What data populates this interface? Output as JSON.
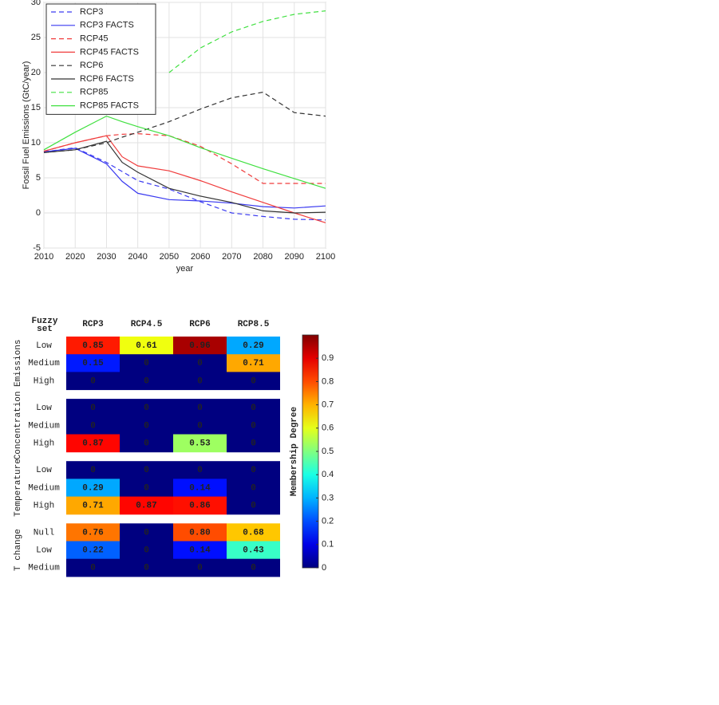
{
  "chart_data": [
    {
      "type": "line",
      "xlabel": "year",
      "ylabel": "Fossil Fuel Emissions (GtC/year)",
      "x": [
        2010,
        2020,
        2030,
        2035,
        2040,
        2050,
        2060,
        2070,
        2080,
        2090,
        2100
      ],
      "xlim": [
        2010,
        2100
      ],
      "xticks": [
        2010,
        2020,
        2030,
        2040,
        2050,
        2060,
        2070,
        2080,
        2090,
        2100
      ],
      "ylim": [
        -5,
        30
      ],
      "yticks": [
        -5,
        0,
        5,
        10,
        15,
        20,
        25,
        30
      ],
      "grid": true,
      "legend": "upper left",
      "series": [
        {
          "name": "RCP3",
          "color": "#3a3af0",
          "dashed": true,
          "values": [
            8.7,
            9.3,
            7.2,
            5.9,
            4.6,
            3.4,
            1.6,
            0,
            -0.5,
            -0.9,
            -1
          ]
        },
        {
          "name": "RCP3 FACTS",
          "color": "#3a3af0",
          "dashed": false,
          "values": [
            8.7,
            9.2,
            7,
            4.5,
            2.8,
            1.9,
            1.7,
            1.4,
            0.9,
            0.7,
            1
          ]
        },
        {
          "name": "RCP45",
          "color": "#f03c3c",
          "dashed": true,
          "values": [
            8.8,
            10,
            11,
            11.2,
            11.3,
            11,
            9.5,
            7,
            4.2,
            4.2,
            4.2
          ]
        },
        {
          "name": "RCP45 FACTS",
          "color": "#f03c3c",
          "dashed": false,
          "values": [
            8.8,
            10,
            11,
            8,
            6.7,
            6,
            4.6,
            3,
            1.5,
            0,
            -1.4
          ]
        },
        {
          "name": "RCP6",
          "color": "#333333",
          "dashed": true,
          "values": [
            8.6,
            9,
            10,
            10.8,
            11.5,
            13,
            14.8,
            16.4,
            17.2,
            14.3,
            13.8
          ]
        },
        {
          "name": "RCP6 FACTS",
          "color": "#333333",
          "dashed": false,
          "values": [
            8.6,
            9,
            10.2,
            7.2,
            5.8,
            3.5,
            2.4,
            1.5,
            0.3,
            0,
            0.1
          ]
        },
        {
          "name": "RCP85",
          "color": "#40e040",
          "dashed": true,
          "values": [
            null,
            null,
            null,
            null,
            null,
            20,
            23.5,
            25.8,
            27.3,
            28.3,
            28.8
          ]
        },
        {
          "name": "RCP85 FACTS",
          "color": "#40e040",
          "dashed": false,
          "values": [
            9,
            11.5,
            13.8,
            13,
            12.3,
            11,
            9.3,
            7.8,
            6.3,
            4.9,
            3.5
          ]
        }
      ]
    },
    {
      "type": "heatmap",
      "corner": "Fuzzy set",
      "columns": [
        "RCP3",
        "RCP4.5",
        "RCP6",
        "RCP8.5"
      ],
      "groups": [
        {
          "name": "Emissions",
          "rows": [
            {
              "label": "Low",
              "values": [
                0.85,
                0.61,
                0.96,
                0.29
              ],
              "value_labels": [
                "0.85",
                "0.61",
                "0.96",
                "0.29"
              ]
            },
            {
              "label": "Medium",
              "values": [
                0.15,
                0,
                0,
                0.71
              ],
              "value_labels": [
                "0.15",
                "0",
                "0",
                "0.71"
              ]
            },
            {
              "label": "High",
              "values": [
                0,
                0,
                0,
                0
              ],
              "value_labels": [
                "0",
                "0",
                "0",
                "0"
              ]
            }
          ]
        },
        {
          "name": "Concentration",
          "rows": [
            {
              "label": "Low",
              "values": [
                0,
                0,
                0,
                0
              ],
              "value_labels": [
                "0",
                "0",
                "0",
                "0"
              ]
            },
            {
              "label": "Medium",
              "values": [
                0,
                0,
                0,
                0
              ],
              "value_labels": [
                "0",
                "0",
                "0",
                "0"
              ]
            },
            {
              "label": "High",
              "values": [
                0.87,
                0,
                0.53,
                0
              ],
              "value_labels": [
                "0.87",
                "0",
                "0.53",
                "0"
              ]
            }
          ]
        },
        {
          "name": "Temperature",
          "rows": [
            {
              "label": "Low",
              "values": [
                0,
                0,
                0,
                0
              ],
              "value_labels": [
                "0",
                "0",
                "0",
                "0"
              ]
            },
            {
              "label": "Medium",
              "values": [
                0.29,
                0,
                0.14,
                0
              ],
              "value_labels": [
                "0.29",
                "0",
                "0.14",
                "0"
              ]
            },
            {
              "label": "High",
              "values": [
                0.71,
                0.87,
                0.86,
                0
              ],
              "value_labels": [
                "0.71",
                "0.87",
                "0.86",
                "0"
              ]
            }
          ]
        },
        {
          "name": "T change",
          "rows": [
            {
              "label": "Null",
              "values": [
                0.76,
                0,
                0.8,
                0.68
              ],
              "value_labels": [
                "0.76",
                "0",
                "0.80",
                "0.68"
              ]
            },
            {
              "label": "Low",
              "values": [
                0.22,
                0,
                0.14,
                0.43
              ],
              "value_labels": [
                "0.22",
                "0",
                "0.14",
                "0.43"
              ]
            },
            {
              "label": "Medium",
              "values": [
                0,
                0,
                0,
                0
              ],
              "value_labels": [
                "0",
                "0",
                "0",
                "0"
              ]
            }
          ]
        }
      ],
      "colorbar": {
        "label": "Membership Degree",
        "lim": [
          0,
          1
        ],
        "ticks": [
          0,
          0.1,
          0.2,
          0.3,
          0.4,
          0.5,
          0.6,
          0.7,
          0.8,
          0.9
        ]
      }
    }
  ]
}
